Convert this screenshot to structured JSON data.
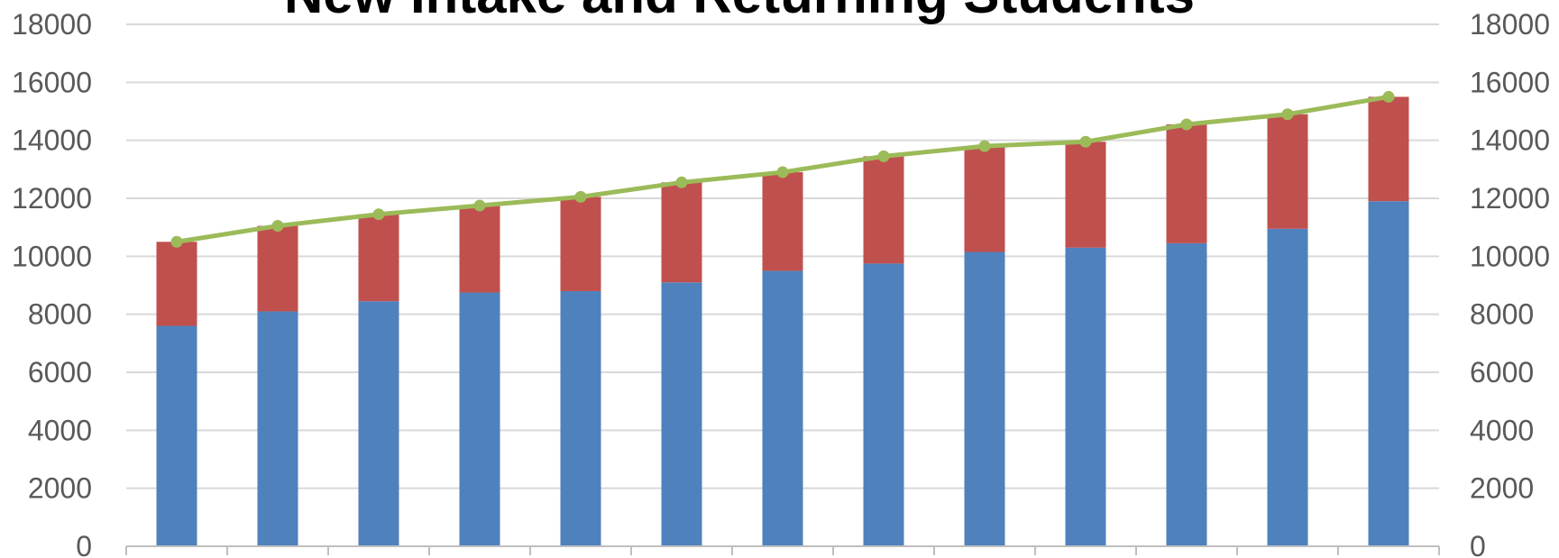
{
  "chart_data": {
    "type": "bar",
    "stacked": true,
    "title": "New Intake and Returning Students",
    "xlabel": "",
    "ylabel": "",
    "ylim": [
      0,
      18000
    ],
    "yticks": [
      "0",
      "2000",
      "4000",
      "6000",
      "8000",
      "10000",
      "12000",
      "14000",
      "16000",
      "18000"
    ],
    "secondary_yticks": [
      "0",
      "2000",
      "4000",
      "6000",
      "8000",
      "10000",
      "12000",
      "14000",
      "16000",
      "18000"
    ],
    "grid": true,
    "legend": "none",
    "category_count": 13,
    "series": [
      {
        "type": "bar",
        "color": "#4f81bd",
        "values": [
          7600,
          8100,
          8450,
          8750,
          8800,
          9100,
          9500,
          9750,
          10150,
          10300,
          10450,
          10950,
          11900
        ]
      },
      {
        "type": "bar",
        "color": "#c0504d",
        "values": [
          2900,
          2950,
          3000,
          3000,
          3250,
          3450,
          3400,
          3700,
          3650,
          3650,
          4100,
          3950,
          3600
        ]
      },
      {
        "type": "line",
        "color": "#9bbb59",
        "axis": "secondary",
        "values": [
          10500,
          11050,
          11450,
          11750,
          12050,
          12550,
          12900,
          13450,
          13800,
          13950,
          14550,
          14900,
          15500
        ]
      }
    ]
  }
}
